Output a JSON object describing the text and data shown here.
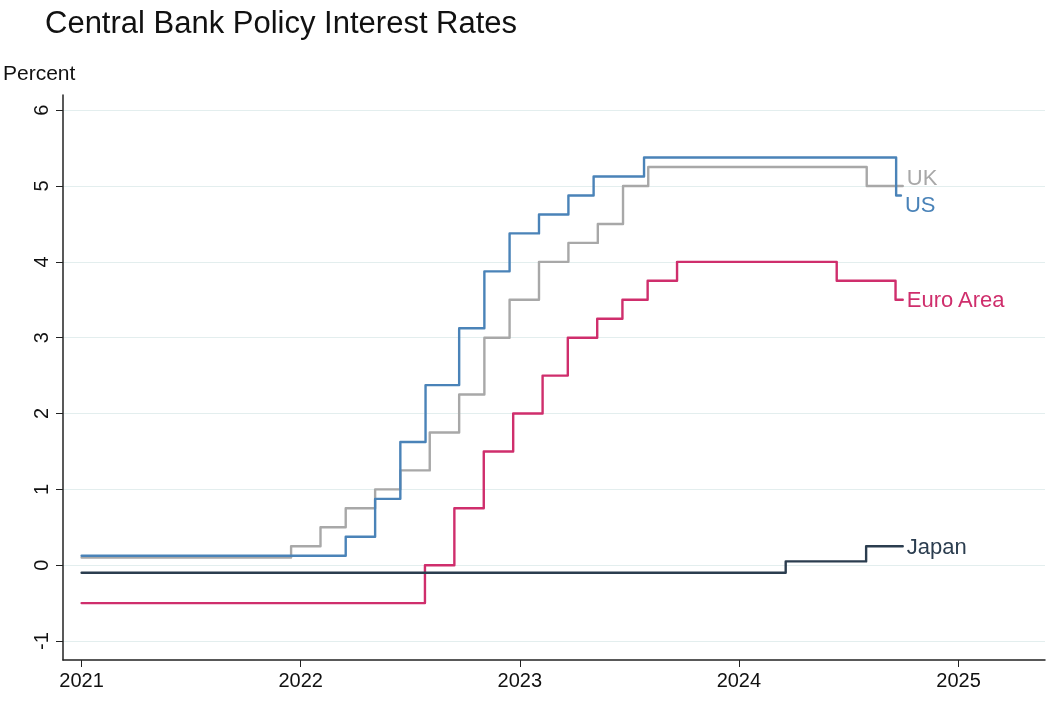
{
  "chart_data": {
    "type": "step",
    "title": "Central Bank Policy Interest Rates",
    "ylabel": "Percent",
    "xlim": [
      "2020-12-01",
      "2025-05-25"
    ],
    "xticks": [
      "2021",
      "2022",
      "2023",
      "2024",
      "2025"
    ],
    "ylim": [
      -1.25,
      6.2
    ],
    "yticks": [
      -1,
      0,
      1,
      2,
      3,
      4,
      5,
      6
    ],
    "grid": "y",
    "legend": false,
    "marker": "none",
    "line_style": "solid",
    "series": [
      {
        "name": "UK",
        "color": "#a8a8a8",
        "x": [
          "2021-01-01",
          "2021-12-16",
          "2022-02-03",
          "2022-03-17",
          "2022-05-05",
          "2022-06-16",
          "2022-08-04",
          "2022-09-22",
          "2022-11-03",
          "2022-12-15",
          "2023-02-02",
          "2023-03-23",
          "2023-05-11",
          "2023-06-22",
          "2023-08-03",
          "2024-08-01",
          "2024-09-30"
        ],
        "values": [
          0.1,
          0.25,
          0.5,
          0.75,
          1.0,
          1.25,
          1.75,
          2.25,
          3.0,
          3.5,
          4.0,
          4.25,
          4.5,
          5.0,
          5.25,
          5.0,
          5.0
        ]
      },
      {
        "name": "US",
        "color": "#4a83b8",
        "x": [
          "2021-01-01",
          "2022-03-17",
          "2022-05-05",
          "2022-06-16",
          "2022-07-28",
          "2022-09-22",
          "2022-11-03",
          "2022-12-15",
          "2023-02-02",
          "2023-03-23",
          "2023-05-04",
          "2023-07-27",
          "2024-09-19",
          "2024-09-27"
        ],
        "values": [
          0.125,
          0.375,
          0.875,
          1.625,
          2.375,
          3.125,
          3.875,
          4.375,
          4.625,
          4.875,
          5.125,
          5.375,
          4.875,
          4.875
        ]
      },
      {
        "name": "Euro Area",
        "color": "#cf2e6c",
        "x": [
          "2021-01-01",
          "2022-07-27",
          "2022-09-14",
          "2022-11-02",
          "2022-12-21",
          "2023-02-08",
          "2023-03-22",
          "2023-05-10",
          "2023-06-21",
          "2023-08-02",
          "2023-09-20",
          "2024-06-12",
          "2024-09-18",
          "2024-09-30"
        ],
        "values": [
          -0.5,
          0.0,
          0.75,
          1.5,
          2.0,
          2.5,
          3.0,
          3.25,
          3.5,
          3.75,
          4.0,
          3.75,
          3.5,
          3.5
        ]
      },
      {
        "name": "Japan",
        "color": "#2b3d4f",
        "x": [
          "2021-01-01",
          "2024-03-19",
          "2024-07-31",
          "2024-09-30"
        ],
        "values": [
          -0.1,
          0.05,
          0.25,
          0.25
        ]
      }
    ]
  }
}
